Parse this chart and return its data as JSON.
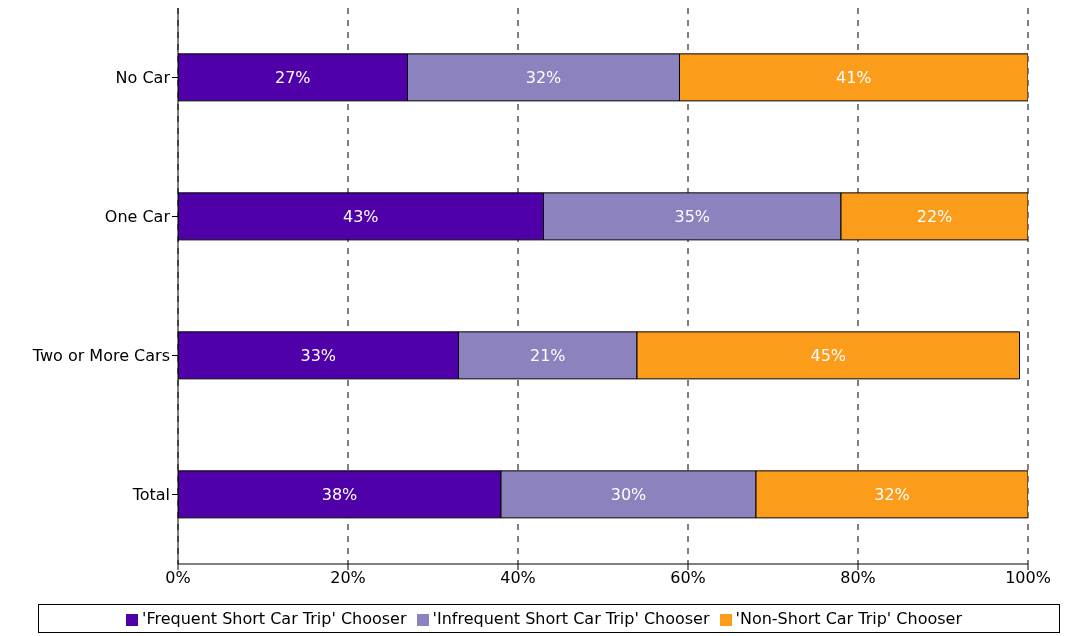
{
  "chart_data": {
    "type": "bar",
    "orientation": "horizontal",
    "stacked": true,
    "categories": [
      "No Car",
      "One Car",
      "Two or More Cars",
      "Total"
    ],
    "series": [
      {
        "name": "'Frequent Short Car Trip' Chooser",
        "color": "#5000a8",
        "values": [
          27,
          43,
          33,
          38
        ],
        "value_labels": [
          "27%",
          "43%",
          "33%",
          "38%"
        ]
      },
      {
        "name": "'Infrequent Short Car Trip' Chooser",
        "color": "#8b82be",
        "values": [
          32,
          35,
          21,
          30
        ],
        "value_labels": [
          "32%",
          "35%",
          "21%",
          "30%"
        ]
      },
      {
        "name": "'Non-Short Car Trip' Chooser",
        "color": "#fb9c1b",
        "values": [
          41,
          22,
          45,
          32
        ],
        "value_labels": [
          "41%",
          "22%",
          "45%",
          "32%"
        ]
      }
    ],
    "xlim": [
      0,
      100
    ],
    "xticks": [
      {
        "value": 0,
        "label": "0%"
      },
      {
        "value": 20,
        "label": "20%"
      },
      {
        "value": 40,
        "label": "40%"
      },
      {
        "value": 60,
        "label": "60%"
      },
      {
        "value": 80,
        "label": "80%"
      },
      {
        "value": 100,
        "label": "100%"
      }
    ],
    "grid": "x",
    "legend": "bottom"
  }
}
